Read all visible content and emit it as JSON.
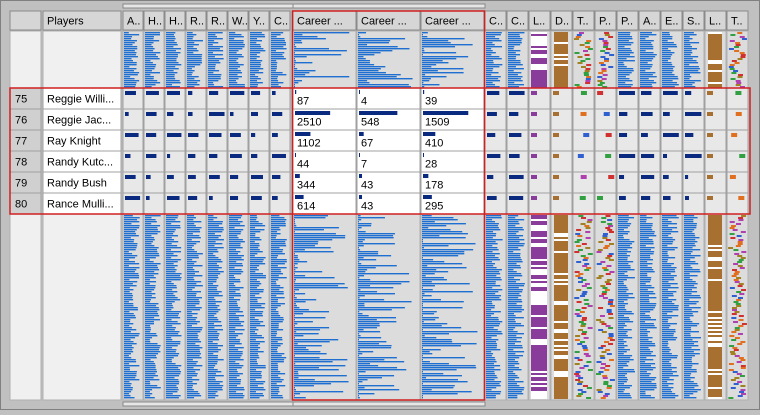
{
  "header": {
    "columns": [
      "Players",
      "A..",
      "H..",
      "H..",
      "R..",
      "R..",
      "W..",
      "Y..",
      "C..",
      "Career ...",
      "Career ...",
      "Career ...",
      "C..",
      "C..",
      "L..",
      "D..",
      "T..",
      "P..",
      "P..",
      "A..",
      "E..",
      "S..",
      "L..",
      "T.."
    ]
  },
  "table": {
    "rows": [
      [
        "75",
        "Reggie Willi...",
        "87",
        "4",
        "39"
      ],
      [
        "76",
        "Reggie Jac...",
        "2510",
        "548",
        "1509"
      ],
      [
        "77",
        "Ray Knight",
        "1102",
        "67",
        "410"
      ],
      [
        "78",
        "Randy Kutc...",
        "44",
        "7",
        "28"
      ],
      [
        "79",
        "Randy Bush",
        "344",
        "43",
        "178"
      ],
      [
        "80",
        "Rance Mulli...",
        "614",
        "43",
        "295"
      ]
    ]
  }
}
